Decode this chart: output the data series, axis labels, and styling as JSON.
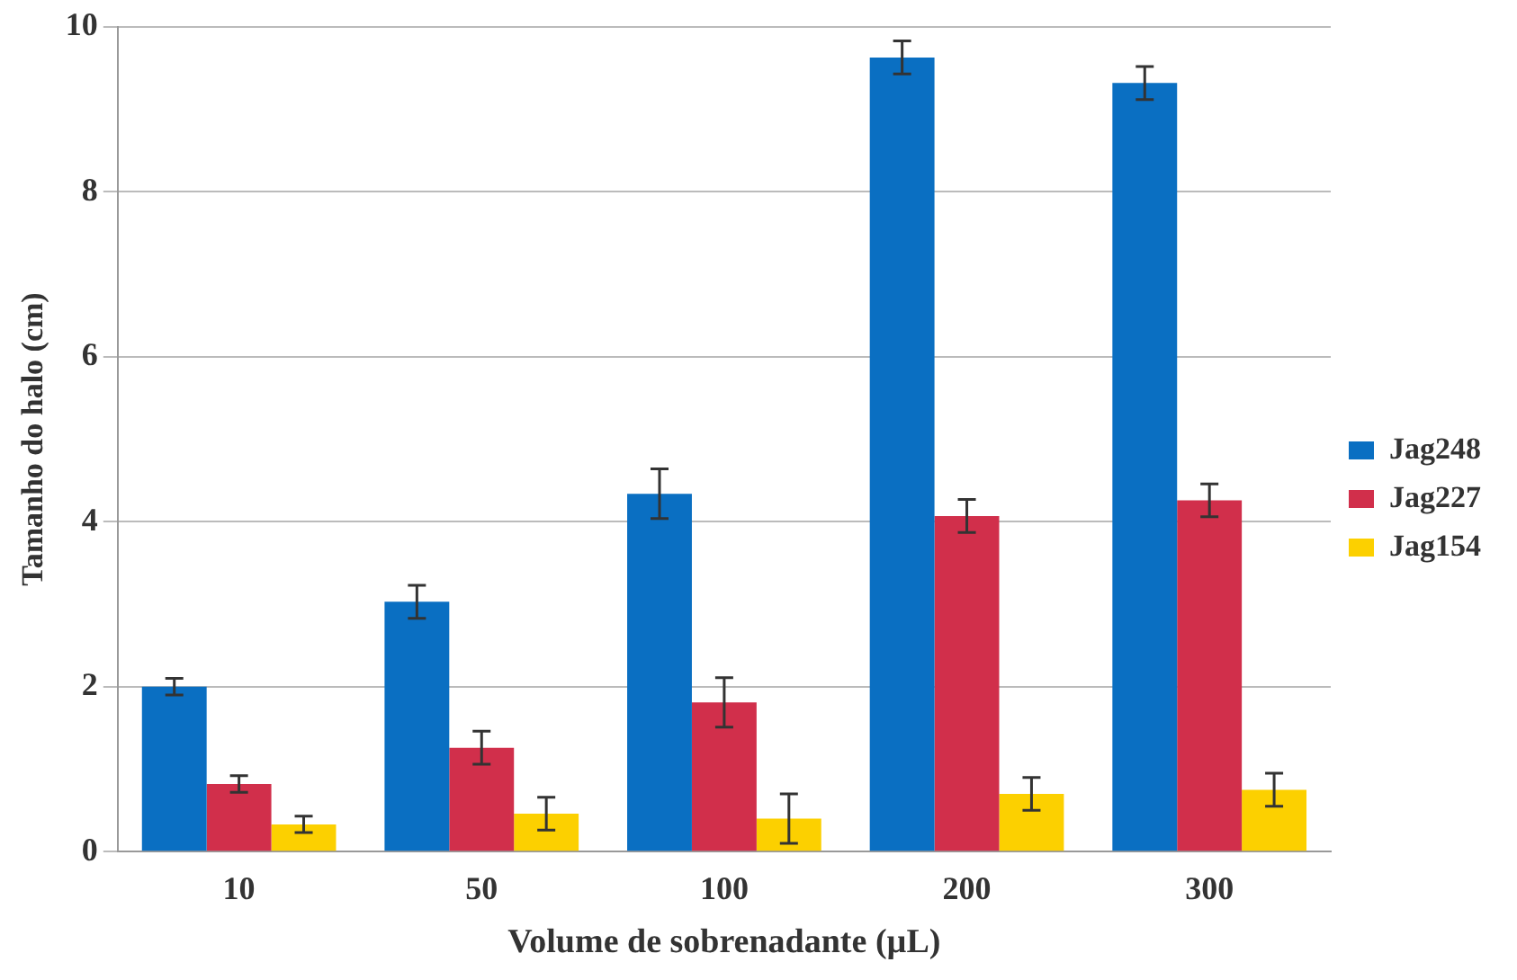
{
  "chart_data": {
    "type": "bar",
    "xlabel": "Volume de sobrenadante (µL)",
    "ylabel": "Tamanho do halo (cm)",
    "categories": [
      "10",
      "50",
      "100",
      "200",
      "300"
    ],
    "series": [
      {
        "name": "Jag248",
        "color": "#0a6fc2",
        "values": [
          2.0,
          3.03,
          4.34,
          9.63,
          9.32
        ],
        "errors": [
          0.1,
          0.2,
          0.3,
          0.2,
          0.2
        ]
      },
      {
        "name": "Jag227",
        "color": "#d12f4b",
        "values": [
          0.82,
          1.26,
          1.81,
          4.07,
          4.26
        ],
        "errors": [
          0.1,
          0.2,
          0.3,
          0.2,
          0.2
        ]
      },
      {
        "name": "Jag154",
        "color": "#fcd000",
        "values": [
          0.33,
          0.46,
          0.4,
          0.7,
          0.75
        ],
        "errors": [
          0.1,
          0.2,
          0.3,
          0.2,
          0.2
        ]
      }
    ],
    "ylim": [
      0,
      10
    ],
    "yticks": [
      0,
      2,
      4,
      6,
      8,
      10
    ],
    "grid": "y",
    "legend": "right"
  }
}
